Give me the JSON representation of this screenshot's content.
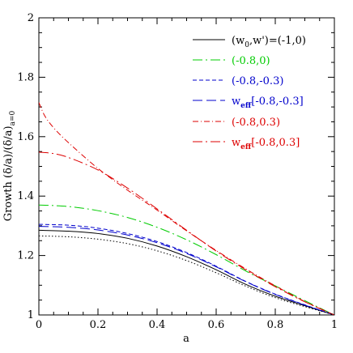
{
  "chart_data": {
    "type": "line",
    "xlabel": "a",
    "ylabel": "Growth (δ/a)/(δ/a)",
    "ylabel_subscript": "a=0",
    "xlim": [
      0,
      1
    ],
    "ylim": [
      1,
      2
    ],
    "x_ticks": [
      0,
      0.2,
      0.4,
      0.6,
      0.8,
      1
    ],
    "x_tick_labels": [
      "0",
      "0.2",
      "0.4",
      "0.6",
      "0.8",
      "1"
    ],
    "y_ticks": [
      1,
      1.2,
      1.4,
      1.6,
      1.8,
      2
    ],
    "y_tick_labels": [
      "1",
      "1.2",
      "1.4",
      "1.6",
      "1.8",
      "2"
    ],
    "legend_position": "top-right",
    "legend_header": "(w0,w')=(-1,0)",
    "series": [
      {
        "name": "(w0,w')=(-1,0)",
        "color": "#000000",
        "dash": "solid",
        "x": [
          0,
          0.1,
          0.2,
          0.3,
          0.4,
          0.5,
          0.6,
          0.7,
          0.8,
          0.9,
          1.0
        ],
        "y": [
          1.285,
          1.282,
          1.274,
          1.258,
          1.232,
          1.196,
          1.152,
          1.103,
          1.063,
          1.031,
          1.0
        ]
      },
      {
        "name": "(-0.8,0)",
        "color": "#00cc00",
        "dash": "long-dash-dot",
        "x": [
          0,
          0.1,
          0.2,
          0.3,
          0.4,
          0.5,
          0.6,
          0.7,
          0.8,
          0.9,
          1.0
        ],
        "y": [
          1.37,
          1.365,
          1.351,
          1.328,
          1.295,
          1.253,
          1.203,
          1.148,
          1.098,
          1.048,
          1.0
        ]
      },
      {
        "name": "(-0.8,-0.3)",
        "color": "#0000cc",
        "dash": "short-dash",
        "x": [
          0,
          0.1,
          0.2,
          0.3,
          0.4,
          0.5,
          0.6,
          0.7,
          0.8,
          0.9,
          1.0
        ],
        "y": [
          1.305,
          1.302,
          1.292,
          1.274,
          1.247,
          1.21,
          1.164,
          1.113,
          1.07,
          1.034,
          1.0
        ]
      },
      {
        "name": "w_eff[-0.8,-0.3]",
        "label_main": "w",
        "label_sub": "eff",
        "label_rest": "[-0.8,-0.3]",
        "color": "#0000cc",
        "dash": "long-dash",
        "x": [
          0,
          0.1,
          0.2,
          0.3,
          0.4,
          0.5,
          0.6,
          0.7,
          0.8,
          0.9,
          1.0
        ],
        "y": [
          1.298,
          1.295,
          1.286,
          1.269,
          1.243,
          1.207,
          1.162,
          1.112,
          1.069,
          1.033,
          1.0
        ]
      },
      {
        "name": "(-0.8,0.3)",
        "color": "#dd0000",
        "dash": "dash-dot",
        "x": [
          0,
          0.02,
          0.05,
          0.1,
          0.2,
          0.3,
          0.4,
          0.5,
          0.6,
          0.7,
          0.8,
          0.9,
          1.0
        ],
        "y": [
          1.715,
          1.67,
          1.63,
          1.58,
          1.493,
          1.42,
          1.353,
          1.283,
          1.217,
          1.155,
          1.098,
          1.045,
          1.0
        ]
      },
      {
        "name": "w_eff[-0.8,0.3]",
        "label_main": "w",
        "label_sub": "eff",
        "label_rest": "[-0.8,0.3]",
        "color": "#dd0000",
        "dash": "long-dash-dot",
        "x": [
          0,
          0.05,
          0.1,
          0.2,
          0.3,
          0.4,
          0.5,
          0.6,
          0.7,
          0.8,
          0.9,
          1.0
        ],
        "y": [
          1.548,
          1.543,
          1.53,
          1.488,
          1.427,
          1.357,
          1.285,
          1.215,
          1.152,
          1.095,
          1.044,
          1.0
        ]
      },
      {
        "color": "#000000",
        "dash": "dotted",
        "x": [
          0,
          0.1,
          0.2,
          0.3,
          0.4,
          0.5,
          0.6,
          0.7,
          0.8,
          0.9,
          1.0
        ],
        "y": [
          1.266,
          1.263,
          1.255,
          1.24,
          1.216,
          1.183,
          1.142,
          1.097,
          1.058,
          1.028,
          1.0
        ]
      }
    ]
  }
}
